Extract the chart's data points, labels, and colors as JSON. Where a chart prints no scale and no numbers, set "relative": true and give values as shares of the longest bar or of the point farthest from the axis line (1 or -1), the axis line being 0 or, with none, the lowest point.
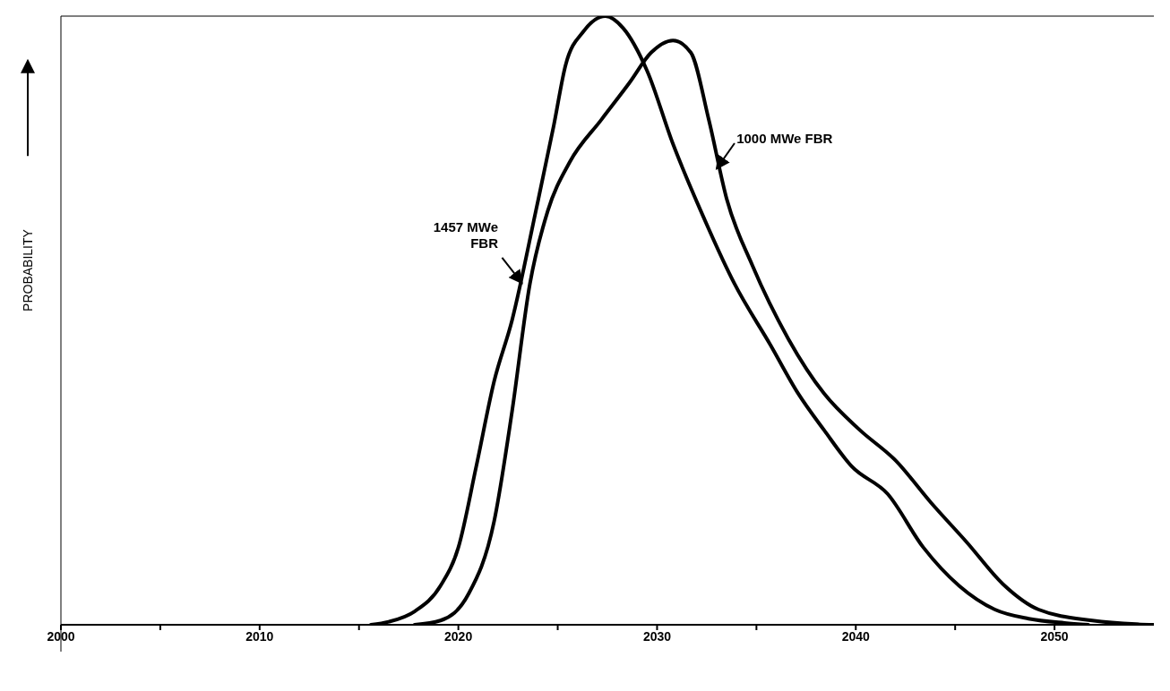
{
  "chart_data": {
    "type": "line",
    "ylabel": "PROBABILITY",
    "relative": true,
    "marker": "none",
    "line_style": "solid",
    "xlim": [
      2000,
      2055
    ],
    "xticks": [
      2000,
      {
        "value": 2005,
        "label": null
      },
      2010,
      {
        "value": 2015,
        "label": null
      },
      2020,
      {
        "value": 2025,
        "label": null
      },
      2030,
      {
        "value": 2035,
        "label": null
      },
      2040,
      {
        "value": 2045,
        "label": null
      },
      2050
    ],
    "series": [
      {
        "name": "1457 MWe FBR",
        "color": "#000000",
        "x": [
          2015.6,
          2016.5,
          2017.8,
          2019.1,
          2020.0,
          2020.9,
          2021.8,
          2022.7,
          2023.9,
          2024.8,
          2025.4,
          2026.3,
          2027.4,
          2028.3,
          2029.5,
          2030.8,
          2032.2,
          2033.9,
          2035.7,
          2037.1,
          2038.4,
          2039.8,
          2041.6,
          2043.4,
          2045.2,
          2047.0,
          2048.7,
          2050.5,
          2051.7
        ],
        "values": [
          0,
          0.005,
          0.022,
          0.064,
          0.127,
          0.26,
          0.4,
          0.5,
          0.68,
          0.82,
          0.92,
          0.975,
          1,
          0.98,
          0.91,
          0.79,
          0.68,
          0.56,
          0.46,
          0.38,
          0.32,
          0.26,
          0.215,
          0.127,
          0.064,
          0.025,
          0.01,
          0.003,
          0
        ]
      },
      {
        "name": "1000 MWe FBR",
        "color": "#000000",
        "x": [
          2017.8,
          2019.1,
          2020.5,
          2021.8,
          2022.7,
          2023.6,
          2024.5,
          2025.6,
          2027.2,
          2028.6,
          2029.7,
          2030.8,
          2031.7,
          2032.6,
          2033.5,
          2034.8,
          2036.6,
          2038.4,
          2040.2,
          2042.0,
          2043.8,
          2045.6,
          2047.4,
          2049.2,
          2051.9,
          2054.1,
          2055
        ],
        "values": [
          0,
          0.007,
          0.05,
          0.17,
          0.35,
          0.56,
          0.68,
          0.76,
          0.83,
          0.89,
          0.94,
          0.96,
          0.94,
          0.83,
          0.7,
          0.59,
          0.47,
          0.38,
          0.32,
          0.27,
          0.2,
          0.135,
          0.067,
          0.025,
          0.007,
          0.001,
          0
        ]
      }
    ]
  }
}
